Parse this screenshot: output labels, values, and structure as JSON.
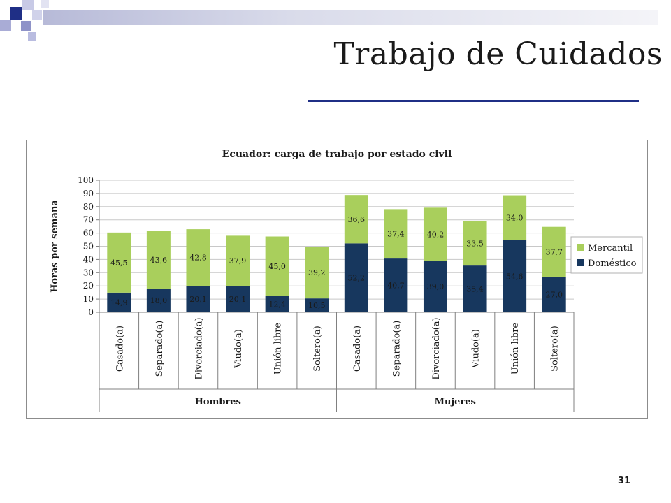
{
  "slide": {
    "title": "Trabajo de Cuidados",
    "page_number": "31",
    "colors": {
      "title_rule": "#1f2f86",
      "deco_dark": "#1f2f86",
      "deco_light": "#a9acd6"
    }
  },
  "chart_data": {
    "type": "bar",
    "stacked": true,
    "title": "Ecuador: carga de trabajo por estado civil",
    "ylabel": "Horas por semana",
    "xlabel": "",
    "ylim": [
      0,
      100
    ],
    "yticks": [
      0,
      10,
      20,
      30,
      40,
      50,
      60,
      70,
      80,
      90,
      100
    ],
    "grid": true,
    "legend_position": "right",
    "groups": [
      {
        "label": "Hombres",
        "categories": [
          "Casado(a)",
          "Separado(a)",
          "Divorciado(a)",
          "Viudo(a)",
          "Unión libre",
          "Soltero(a)"
        ]
      },
      {
        "label": "Mujeres",
        "categories": [
          "Casado(a)",
          "Separado(a)",
          "Divorciado(a)",
          "Viudo(a)",
          "Unión libre",
          "Soltero(a)"
        ]
      }
    ],
    "series": [
      {
        "name": "Doméstico",
        "color": "#17375e",
        "values": [
          14.9,
          18.0,
          20.1,
          20.1,
          12.4,
          10.5,
          52.2,
          40.7,
          39.0,
          35.4,
          54.6,
          27.0
        ],
        "labels": [
          "14,9",
          "18,0",
          "20,1",
          "20,1",
          "12,4",
          "10,5",
          "52,2",
          "40,7",
          "39,0",
          "35,4",
          "54,6",
          "27,0"
        ]
      },
      {
        "name": "Mercantil",
        "color": "#a9cf5c",
        "values": [
          45.5,
          43.6,
          42.8,
          37.9,
          45.0,
          39.2,
          36.6,
          37.4,
          40.2,
          33.5,
          34.0,
          37.7
        ],
        "labels": [
          "45,5",
          "43,6",
          "42,8",
          "37,9",
          "45,0",
          "39,2",
          "36,6",
          "37,4",
          "40,2",
          "33,5",
          "34,0",
          "37,7"
        ]
      }
    ],
    "legend": [
      "Mercantil",
      "Doméstico"
    ]
  }
}
